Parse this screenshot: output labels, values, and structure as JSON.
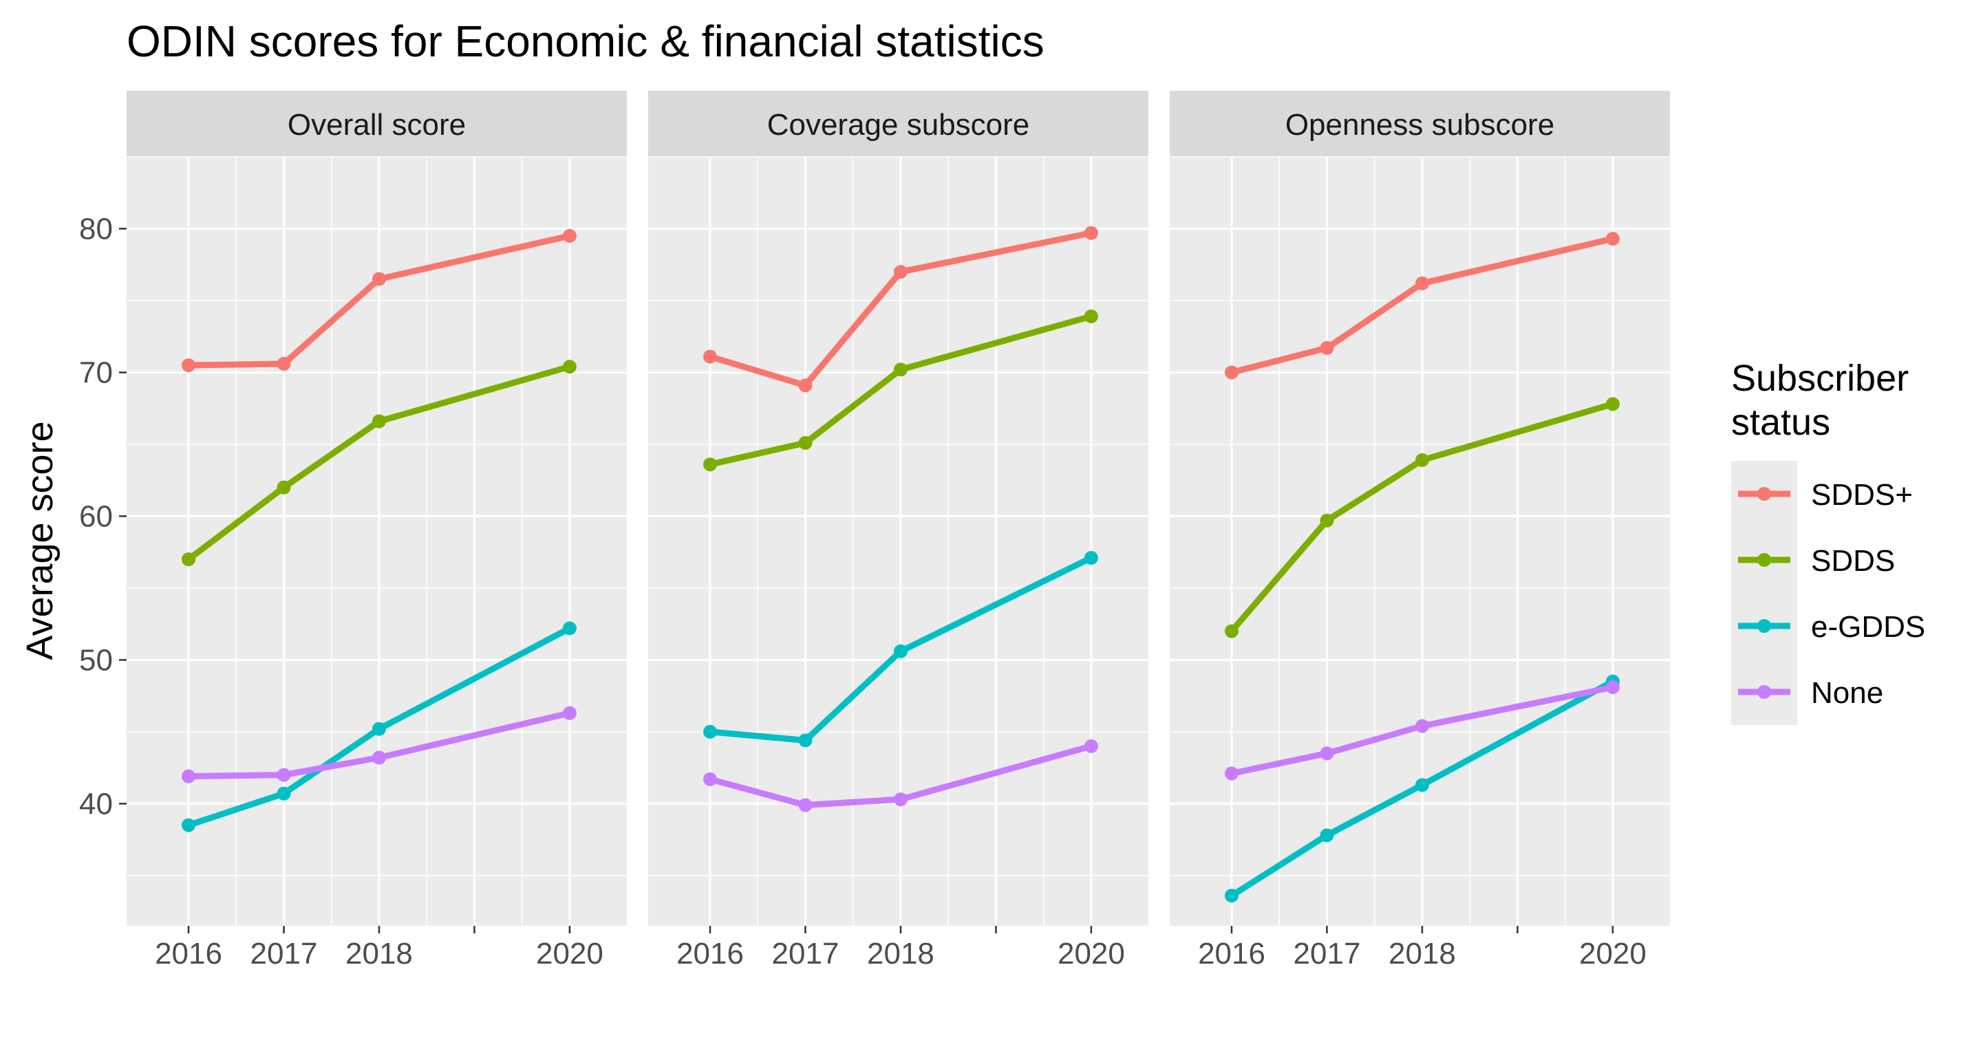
{
  "chart_data": {
    "type": "line",
    "title": "ODIN scores for Economic & financial statistics",
    "ylabel": "Average score",
    "xlabel": "",
    "x": [
      2016,
      2017,
      2018,
      2020
    ],
    "x_ticks": [
      "2016",
      "2017",
      "2018",
      "2020"
    ],
    "xlim": [
      2015.35,
      2020.6
    ],
    "ylim": [
      31.5,
      85
    ],
    "y_ticks": [
      40,
      50,
      60,
      70,
      80
    ],
    "y_tick_labels": [
      "40",
      "50",
      "60",
      "70",
      "80"
    ],
    "grid": true,
    "legend": {
      "title_lines": [
        "Subscriber",
        "status"
      ],
      "placement": "right"
    },
    "series_styles": [
      {
        "name": "SDDS+",
        "color": "#F8766D"
      },
      {
        "name": "SDDS",
        "color": "#7CAE00"
      },
      {
        "name": "e-GDDS",
        "color": "#00BFC4"
      },
      {
        "name": "None",
        "color": "#C77CFF"
      }
    ],
    "panels": [
      {
        "strip": "Overall score",
        "series": [
          {
            "name": "SDDS+",
            "values": [
              70.5,
              70.6,
              76.5,
              79.5
            ]
          },
          {
            "name": "SDDS",
            "values": [
              57.0,
              62.0,
              66.6,
              70.4
            ]
          },
          {
            "name": "e-GDDS",
            "values": [
              38.5,
              40.7,
              45.2,
              52.2
            ]
          },
          {
            "name": "None",
            "values": [
              41.9,
              42.0,
              43.2,
              46.3
            ]
          }
        ]
      },
      {
        "strip": "Coverage subscore",
        "series": [
          {
            "name": "SDDS+",
            "values": [
              71.1,
              69.1,
              77.0,
              79.7
            ]
          },
          {
            "name": "SDDS",
            "values": [
              63.6,
              65.1,
              70.2,
              73.9
            ]
          },
          {
            "name": "e-GDDS",
            "values": [
              45.0,
              44.4,
              50.6,
              57.1
            ]
          },
          {
            "name": "None",
            "values": [
              41.7,
              39.9,
              40.3,
              44.0
            ]
          }
        ]
      },
      {
        "strip": "Openness subscore",
        "series": [
          {
            "name": "SDDS+",
            "values": [
              70.0,
              71.7,
              76.2,
              79.3
            ]
          },
          {
            "name": "SDDS",
            "values": [
              52.0,
              59.7,
              63.9,
              67.8
            ]
          },
          {
            "name": "e-GDDS",
            "values": [
              33.6,
              37.8,
              41.3,
              48.5
            ]
          },
          {
            "name": "None",
            "values": [
              42.1,
              43.5,
              45.4,
              48.1
            ]
          }
        ]
      }
    ]
  }
}
